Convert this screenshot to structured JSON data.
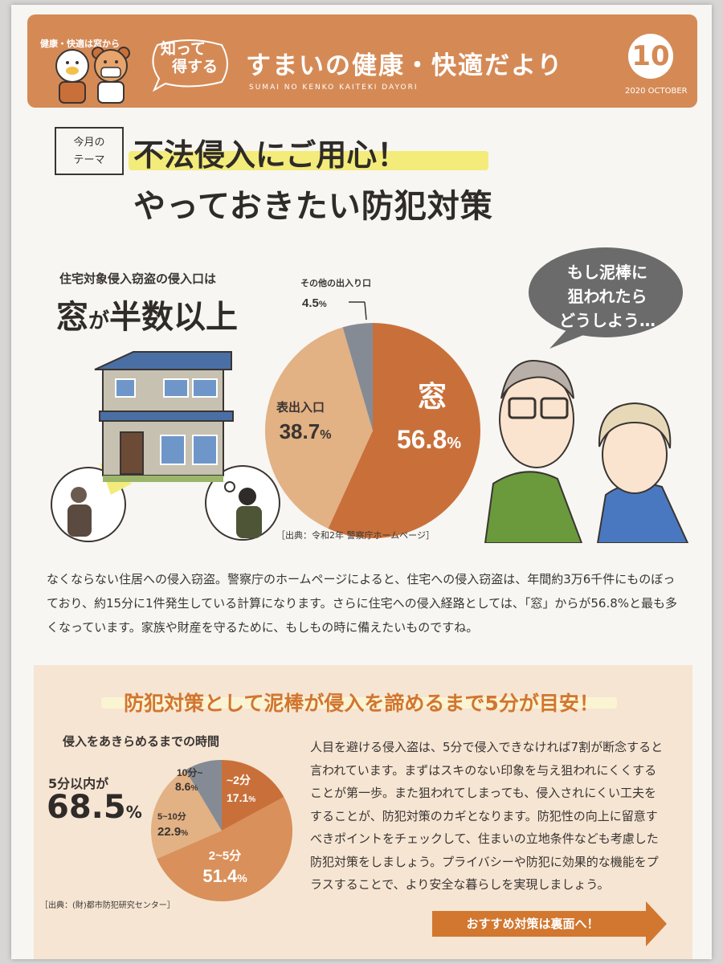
{
  "header": {
    "tag": "健康・快適は窓から",
    "know_line1": "知って",
    "know_line2": "得する",
    "title": "すまいの健康・快適だより",
    "subtitle": "SUMAI NO KENKO KAITEKI DAYORI",
    "issue_number": "10",
    "date": "2020 OCTOBER"
  },
  "theme": {
    "label_line1": "今月の",
    "label_line2": "テーマ",
    "title_line1": "不法侵入にご用心！",
    "title_line2": "やっておきたい防犯対策"
  },
  "stats": {
    "sub": "住宅対象侵入窃盗の侵入口は",
    "main_a": "窓",
    "main_b": "が",
    "main_c": "半数以上"
  },
  "worry": {
    "line1": "もし泥棒に",
    "line2": "狙われたら",
    "line3": "どうしよう…"
  },
  "chart_data": [
    {
      "type": "pie",
      "title": "",
      "slices": [
        {
          "label": "窓",
          "value": 56.8,
          "display": "56.8",
          "unit": "%",
          "color": "#c9703a"
        },
        {
          "label": "表出入口",
          "value": 38.7,
          "display": "38.7",
          "unit": "%",
          "color": "#e2b184"
        },
        {
          "label": "その他の出入り口",
          "value": 4.5,
          "display": "4.5",
          "unit": "%",
          "color": "#858b94"
        }
      ],
      "source": "［出典：令和2年 警察庁ホームページ］"
    },
    {
      "type": "pie",
      "title": "侵入をあきらめるまでの時間",
      "slices": [
        {
          "label": "~2分",
          "value": 17.1,
          "display": "17.1",
          "unit": "%",
          "color": "#c9703a"
        },
        {
          "label": "2~5分",
          "value": 51.4,
          "display": "51.4",
          "unit": "%",
          "color": "#d9905a"
        },
        {
          "label": "5~10分",
          "value": 22.9,
          "display": "22.9",
          "unit": "%",
          "color": "#e2b184"
        },
        {
          "label": "10分~",
          "value": 8.6,
          "display": "8.6",
          "unit": "%",
          "color": "#858b94"
        }
      ],
      "highlight_label": "5分以内が",
      "highlight_value": "68.5",
      "highlight_unit": "%",
      "source": "［出典：(財)都市防犯研究センター］"
    }
  ],
  "paragraph1": "なくならない住居への侵入窃盗。警察庁のホームページによると、住宅への侵入窃盗は、年間約3万6千件にものぼっており、約15分に1件発生している計算になります。さらに住宅への侵入経路としては、「窓」からが56.8%と最も多くなっています。家族や財産を守るために、もしもの時に備えたいものですね。",
  "panel": {
    "title": "防犯対策として泥棒が侵入を諦めるまで5分が目安！",
    "paragraph": "人目を避ける侵入盗は、5分で侵入できなければ7割が断念すると言われています。まずはスキのない印象を与え狙われにくくすることが第一歩。また狙われてしまっても、侵入されにくい工夫をすることが、防犯対策のカギとなります。防犯性の向上に留意すべきポイントをチェックして、住まいの立地条件なども考慮した防犯対策をしましょう。プライバシーや防犯に効果的な機能をプラスすることで、より安全な暮らしを実現しましょう。",
    "cta": "おすすめ対策は裏面へ！"
  }
}
